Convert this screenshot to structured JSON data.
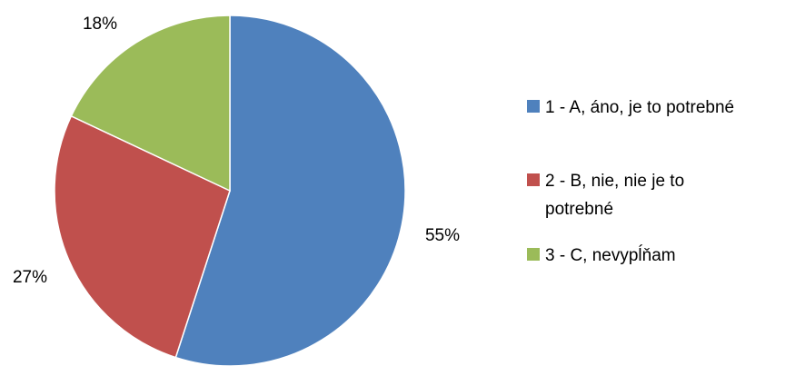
{
  "chart_data": {
    "type": "pie",
    "title": "",
    "slices": [
      {
        "label": "1 - A, áno, je to potrebné",
        "legend_lines": [
          "1 - A, áno, je to potrebné"
        ],
        "value": 55,
        "value_label": "55%",
        "color": "#4F81BD"
      },
      {
        "label": "2 - B, nie, nie je to potrebné",
        "legend_lines": [
          "2 - B, nie, nie je to",
          "potrebné"
        ],
        "value": 27,
        "value_label": "27%",
        "color": "#C0504D"
      },
      {
        "label": "3 - C, nevypĺňam",
        "legend_lines": [
          "3 - C, nevypĺňam"
        ],
        "value": 18,
        "value_label": "18%",
        "color": "#9BBB59"
      }
    ],
    "start_angle": "12 o'clock",
    "direction": "clockwise",
    "legend_position": "right"
  }
}
